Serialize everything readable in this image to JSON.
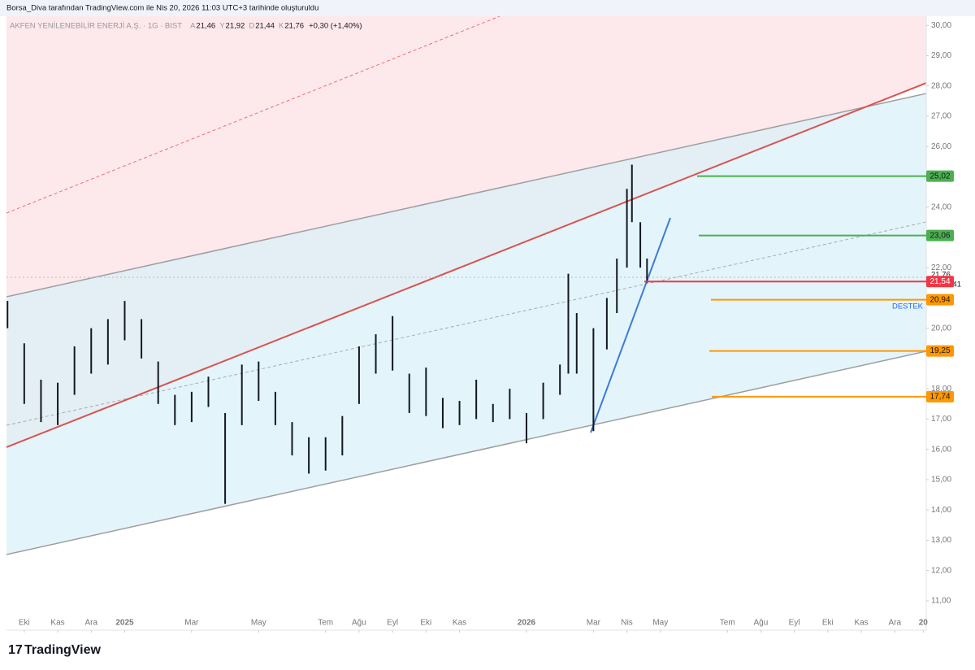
{
  "header": "Borsa_Diva tarafından TradingView.com ile Nis 20, 2026 11:03 UTC+3 tarihinde oluşturuldu",
  "footer": "TradingView",
  "chart_data": {
    "type": "ohlc",
    "title": "AKFEN YENİLENEBİLİR ENERJİ A.Ş. · 1G · BIST",
    "legend": [
      {
        "key": "A",
        "value": "21,46"
      },
      {
        "key": "Y",
        "value": "21,92"
      },
      {
        "key": "D",
        "value": "21,44"
      },
      {
        "key": "K",
        "value": "21,76"
      },
      {
        "key": "",
        "value": "+0,30 (+1,40%)"
      }
    ],
    "x": [
      -0.5,
      0,
      0.5,
      1,
      1.5,
      2,
      2.5,
      3,
      3.5,
      4,
      4.5,
      5,
      5.5,
      6,
      6.5,
      7,
      7.5,
      8,
      8.5,
      9,
      9.5,
      10,
      10.5,
      11,
      11.5,
      12,
      12.5,
      13,
      13.5,
      14,
      14.5,
      15,
      15.5,
      16,
      16.25,
      16.5,
      17,
      17.4,
      17.7,
      18,
      18.15,
      18.4,
      18.6
    ],
    "high": [
      20.9,
      19.5,
      18.3,
      18.2,
      19.4,
      20.0,
      20.3,
      20.9,
      20.3,
      18.9,
      17.8,
      17.9,
      18.4,
      17.2,
      18.8,
      18.9,
      17.9,
      16.9,
      16.4,
      16.4,
      17.1,
      19.4,
      19.8,
      20.4,
      18.5,
      18.7,
      17.7,
      17.6,
      18.3,
      17.5,
      18.0,
      17.2,
      18.2,
      18.8,
      21.8,
      20.5,
      20.0,
      21.0,
      22.3,
      24.6,
      25.4,
      23.5,
      22.3
    ],
    "low": [
      20.0,
      17.5,
      16.9,
      16.8,
      17.8,
      18.5,
      18.8,
      19.6,
      19.0,
      17.5,
      16.8,
      16.9,
      17.4,
      14.2,
      16.8,
      17.6,
      16.8,
      15.8,
      15.2,
      15.3,
      15.8,
      17.5,
      18.5,
      18.6,
      17.2,
      17.1,
      16.7,
      16.8,
      17.0,
      16.9,
      17.0,
      16.2,
      17.0,
      17.8,
      18.5,
      18.5,
      16.6,
      19.3,
      20.5,
      22.0,
      23.5,
      22.0,
      21.5
    ],
    "color": "#131722",
    "xlim": [
      -0.53,
      26.94
    ],
    "ylim": [
      10.03,
      30.3
    ],
    "xticks": [
      {
        "value": 0,
        "label": "Eki"
      },
      {
        "value": 1,
        "label": "Kas"
      },
      {
        "value": 2,
        "label": "Ara"
      },
      {
        "value": 3,
        "label": "2025"
      },
      {
        "value": 5,
        "label": "Mar"
      },
      {
        "value": 7,
        "label": "May"
      },
      {
        "value": 9,
        "label": "Tem"
      },
      {
        "value": 10,
        "label": "Ağu"
      },
      {
        "value": 11,
        "label": "Eyl"
      },
      {
        "value": 12,
        "label": "Eki"
      },
      {
        "value": 13,
        "label": "Kas"
      },
      {
        "value": 15,
        "label": "2026"
      },
      {
        "value": 17,
        "label": "Mar"
      },
      {
        "value": 18,
        "label": "Nis"
      },
      {
        "value": 19,
        "label": "May"
      },
      {
        "value": 21,
        "label": "Tem"
      },
      {
        "value": 22,
        "label": "Ağu"
      },
      {
        "value": 23,
        "label": "Eyl"
      },
      {
        "value": 24,
        "label": "Eki"
      },
      {
        "value": 25,
        "label": "Kas"
      },
      {
        "value": 26,
        "label": "Ara"
      },
      {
        "value": 26.85,
        "label": "20"
      }
    ],
    "yticks": [
      {
        "value": 30,
        "label": "30,00"
      },
      {
        "value": 29,
        "label": "29,00"
      },
      {
        "value": 28,
        "label": "28,00"
      },
      {
        "value": 27,
        "label": "27,00"
      },
      {
        "value": 26,
        "label": "26,00"
      },
      {
        "value": 24,
        "label": "24,00"
      },
      {
        "value": 22,
        "label": "22,00"
      },
      {
        "value": 20,
        "label": "20,00"
      },
      {
        "value": 18,
        "label": "18,00"
      },
      {
        "value": 17,
        "label": "17,00"
      },
      {
        "value": 16,
        "label": "16,00"
      },
      {
        "value": 15,
        "label": "15,00"
      },
      {
        "value": 14,
        "label": "14,00"
      },
      {
        "value": 13,
        "label": "13,00"
      },
      {
        "value": 12,
        "label": "12,00"
      },
      {
        "value": 11,
        "label": "11,00"
      }
    ],
    "levels": [
      {
        "value": 25.02,
        "label": "25,02",
        "color": "#4caf50"
      },
      {
        "value": 23.06,
        "label": "23,06",
        "color": "#4caf50"
      },
      {
        "value": 21.54,
        "label": "21,54",
        "color": "#f23645"
      },
      {
        "value": 20.94,
        "label": "20,94",
        "color": "#ff9800"
      },
      {
        "value": 19.25,
        "label": "19,25",
        "color": "#ff9800"
      },
      {
        "value": 17.74,
        "label": "17,74",
        "color": "#ff9800"
      }
    ],
    "last_price": "21,76",
    "countdown": "07:06:41",
    "support_label": "DESTEK"
  }
}
